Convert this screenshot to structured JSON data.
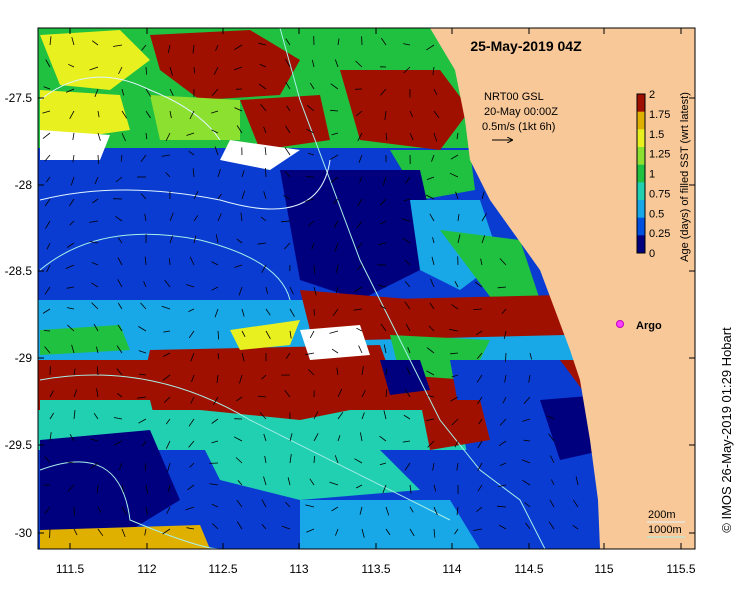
{
  "map": {
    "title": "25-May-2019 04Z",
    "credit": "© IMOS 26-May-2019 01:29 Hobart",
    "argo_label": "Argo",
    "current_note": {
      "line1": "NRT00 GSL",
      "line2": "20-May 00:00Z",
      "line3": "0.5m/s (1kt 6h)"
    },
    "isobath_legend": {
      "label_200": "200m",
      "label_1000": "1000m"
    },
    "colorbar": {
      "label": "Age (days) of filled SST (wrt latest)",
      "ticks": [
        "0",
        "0.25",
        "0.5",
        "0.75",
        "1",
        "1.25",
        "1.5",
        "1.75",
        "2"
      ],
      "colors": [
        "#00007f",
        "#0050e0",
        "#18a8e8",
        "#20d0b0",
        "#20c040",
        "#8ce030",
        "#e8f020",
        "#e0b000",
        "#a01000"
      ]
    },
    "x_ticks": [
      "111.5",
      "112",
      "112.5",
      "113",
      "113.5",
      "114",
      "114.5",
      "115",
      "115.5"
    ],
    "y_ticks": [
      "-27.5",
      "-28",
      "-28.5",
      "-29",
      "-29.5",
      "-30"
    ],
    "land_color": "#f8c898",
    "isobath_colors": {
      "c200": "#a8f0e8",
      "c1000": "#e0f4ff"
    }
  }
}
